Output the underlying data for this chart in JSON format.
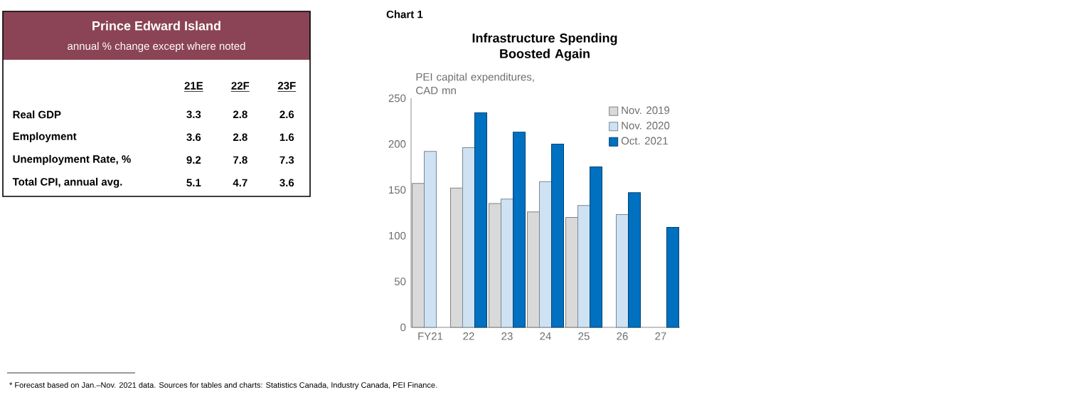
{
  "chart_data": [
    {
      "type": "heatmap",
      "title": "Prince Edward Island",
      "subtitle": "annual % change except where noted",
      "categories": [
        "21E",
        "22F",
        "23F"
      ],
      "y_categories": [
        "Real GDP",
        "Employment",
        "Unemployment Rate, %",
        "Total CPI, annual avg."
      ],
      "cells": [
        [
          3.3,
          2.8,
          2.6
        ],
        [
          3.6,
          2.8,
          1.6
        ],
        [
          9.2,
          7.8,
          7.3
        ],
        [
          5.1,
          4.7,
          3.6
        ]
      ],
      "data_labels": true
    },
    {
      "type": "bar",
      "title": "Infrastructure Spending Boosted Again",
      "ylabel": "PEI capital expenditures, CAD mn",
      "categories": [
        "FY21",
        "22",
        "23",
        "24",
        "25",
        "26",
        "27"
      ],
      "series": [
        {
          "name": "Nov. 2019",
          "color": "#d9d9d9",
          "values": [
            157,
            152,
            135,
            126,
            120,
            null,
            null
          ]
        },
        {
          "name": "Nov. 2020",
          "color": "#cfe2f3",
          "values": [
            192,
            196,
            140,
            159,
            133,
            123,
            null
          ]
        },
        {
          "name": "Oct. 2021",
          "color": "#0070c0",
          "values": [
            null,
            234,
            213,
            200,
            175,
            147,
            109
          ]
        }
      ],
      "ylim": [
        0,
        250
      ],
      "yticks": [
        0,
        50,
        100,
        150,
        200,
        250
      ],
      "legend": "top right",
      "annotations": [
        "Chart 1",
        "* Forecast based on Jan.–Nov. 2021 data. Sources for tables and charts: Statistics Canada, Industry Canada, PEI Finance."
      ]
    }
  ]
}
